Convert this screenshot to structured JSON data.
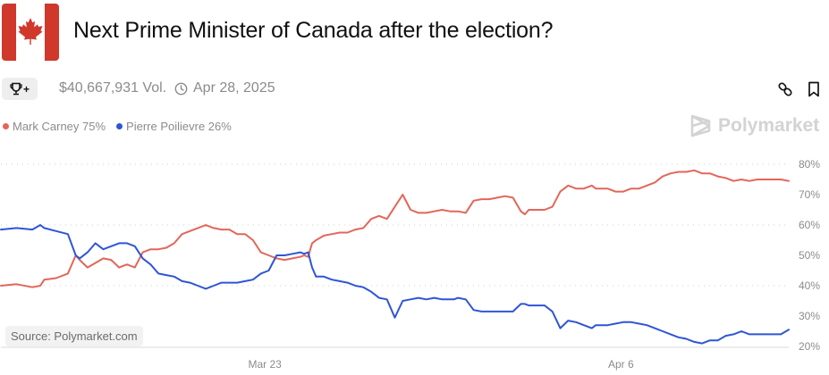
{
  "header": {
    "title": "Next Prime Minister of Canada after the election?",
    "flag_icon": "canada-flag-icon",
    "volume": "$40,667,931 Vol.",
    "date": "Apr 28, 2025",
    "trophy_button_icon": "trophy-plus-icon",
    "link_icon": "link-icon",
    "bookmark_icon": "bookmark-icon"
  },
  "legend": [
    {
      "label": "Mark Carney 75%",
      "color": "#e2665a"
    },
    {
      "label": "Pierre Poilievre 26%",
      "color": "#2f55d4"
    }
  ],
  "brand": {
    "name": "Polymarket",
    "icon": "polymarket-logo-icon"
  },
  "source_label": "Source: Polymarket.com",
  "chart_data": {
    "type": "line",
    "title": "Next Prime Minister of Canada after the election?",
    "xlabel": "",
    "ylabel": "",
    "ylim": [
      20,
      80
    ],
    "yticks": [
      "20%",
      "30%",
      "40%",
      "50%",
      "60%",
      "70%",
      "80%"
    ],
    "ytick_values": [
      20,
      30,
      40,
      50,
      60,
      70,
      80
    ],
    "gridlines_dotted_at": [
      40,
      60,
      80
    ],
    "xticks": [
      {
        "label": "Mar 23",
        "pos": 0.335
      },
      {
        "label": "Apr 6",
        "pos": 0.787
      }
    ],
    "x_range": [
      0,
      1
    ],
    "legend_position": "top-left",
    "series": [
      {
        "name": "Mark Carney",
        "color": "#e2665a",
        "x": [
          0,
          0.02,
          0.04,
          0.05,
          0.055,
          0.07,
          0.085,
          0.095,
          0.1,
          0.11,
          0.12,
          0.13,
          0.14,
          0.15,
          0.16,
          0.17,
          0.18,
          0.19,
          0.2,
          0.21,
          0.22,
          0.23,
          0.24,
          0.25,
          0.26,
          0.27,
          0.28,
          0.29,
          0.3,
          0.31,
          0.32,
          0.33,
          0.34,
          0.35,
          0.36,
          0.37,
          0.38,
          0.385,
          0.39,
          0.395,
          0.4,
          0.41,
          0.42,
          0.43,
          0.44,
          0.45,
          0.46,
          0.47,
          0.48,
          0.49,
          0.5,
          0.51,
          0.52,
          0.53,
          0.54,
          0.55,
          0.56,
          0.57,
          0.575,
          0.58,
          0.59,
          0.6,
          0.61,
          0.62,
          0.63,
          0.64,
          0.65,
          0.66,
          0.665,
          0.67,
          0.68,
          0.69,
          0.7,
          0.71,
          0.72,
          0.73,
          0.74,
          0.75,
          0.755,
          0.76,
          0.77,
          0.78,
          0.79,
          0.8,
          0.81,
          0.82,
          0.83,
          0.84,
          0.85,
          0.86,
          0.87,
          0.88,
          0.89,
          0.9,
          0.91,
          0.92,
          0.93,
          0.94,
          0.95,
          0.96,
          0.97,
          0.98,
          0.99,
          1.0
        ],
        "values": [
          40,
          40.5,
          39.5,
          40,
          42,
          42.5,
          44,
          50,
          48.5,
          46,
          47.5,
          49,
          48.5,
          46,
          47,
          46,
          51,
          52,
          52,
          52.5,
          54,
          57,
          58,
          59,
          60,
          59,
          58.5,
          58.5,
          57,
          57,
          55,
          51,
          50,
          49,
          48.5,
          49,
          49.5,
          50,
          49.5,
          54,
          55,
          56.5,
          57,
          57.5,
          57.5,
          58.5,
          59,
          62,
          63,
          62,
          66,
          70,
          65,
          64,
          64,
          64.5,
          65,
          64.5,
          64.5,
          64.5,
          64,
          68,
          68.5,
          68.5,
          69,
          69.5,
          69,
          64.5,
          63.5,
          65,
          65,
          65,
          66,
          71,
          73,
          72,
          72,
          73,
          72,
          72,
          72,
          71,
          71,
          72,
          72,
          73,
          74,
          76,
          77,
          77.5,
          77.5,
          78,
          77,
          77,
          76,
          75.5,
          74.5,
          75,
          74.5,
          75,
          75,
          75,
          75,
          74.5
        ],
        "end_label": "75%"
      },
      {
        "name": "Pierre Poilievre",
        "color": "#2f55d4",
        "x": [
          0,
          0.02,
          0.04,
          0.05,
          0.055,
          0.07,
          0.085,
          0.095,
          0.1,
          0.11,
          0.12,
          0.13,
          0.14,
          0.15,
          0.16,
          0.17,
          0.18,
          0.19,
          0.2,
          0.21,
          0.22,
          0.23,
          0.24,
          0.25,
          0.26,
          0.27,
          0.28,
          0.29,
          0.3,
          0.31,
          0.32,
          0.33,
          0.34,
          0.35,
          0.36,
          0.37,
          0.38,
          0.385,
          0.39,
          0.395,
          0.4,
          0.41,
          0.42,
          0.43,
          0.44,
          0.45,
          0.46,
          0.47,
          0.48,
          0.49,
          0.5,
          0.51,
          0.52,
          0.53,
          0.54,
          0.55,
          0.56,
          0.57,
          0.575,
          0.58,
          0.59,
          0.6,
          0.61,
          0.62,
          0.63,
          0.64,
          0.65,
          0.66,
          0.665,
          0.67,
          0.68,
          0.69,
          0.7,
          0.71,
          0.72,
          0.73,
          0.74,
          0.75,
          0.755,
          0.76,
          0.77,
          0.78,
          0.79,
          0.8,
          0.81,
          0.82,
          0.83,
          0.84,
          0.85,
          0.86,
          0.87,
          0.88,
          0.89,
          0.9,
          0.91,
          0.92,
          0.93,
          0.94,
          0.95,
          0.96,
          0.97,
          0.98,
          0.99,
          1.0
        ],
        "values": [
          58.5,
          59,
          58.5,
          60,
          59,
          58,
          57,
          50,
          49,
          51,
          54,
          52,
          53,
          54,
          54,
          53,
          49,
          47,
          44,
          43.5,
          43,
          41.5,
          41,
          40,
          39,
          40,
          41,
          41,
          41,
          41.5,
          42,
          44,
          45,
          50,
          50,
          50.5,
          51,
          50.5,
          51,
          46,
          43,
          43,
          42,
          41.5,
          41,
          40,
          39.5,
          38,
          36,
          35.5,
          29.5,
          35,
          35.5,
          36,
          35.5,
          36,
          35.5,
          35.5,
          35.5,
          36,
          35.5,
          32,
          31.5,
          31.5,
          31.5,
          31.5,
          31.5,
          34,
          34,
          33.5,
          33.5,
          33.5,
          31.5,
          26,
          28.5,
          28,
          27,
          26,
          27,
          27,
          27,
          27.5,
          28,
          28,
          27.5,
          27,
          26,
          25,
          24,
          23,
          22.5,
          21.5,
          21,
          22,
          22,
          23.5,
          24,
          25,
          24,
          24,
          24,
          24,
          24,
          25.5
        ],
        "end_label": "26%"
      }
    ]
  }
}
